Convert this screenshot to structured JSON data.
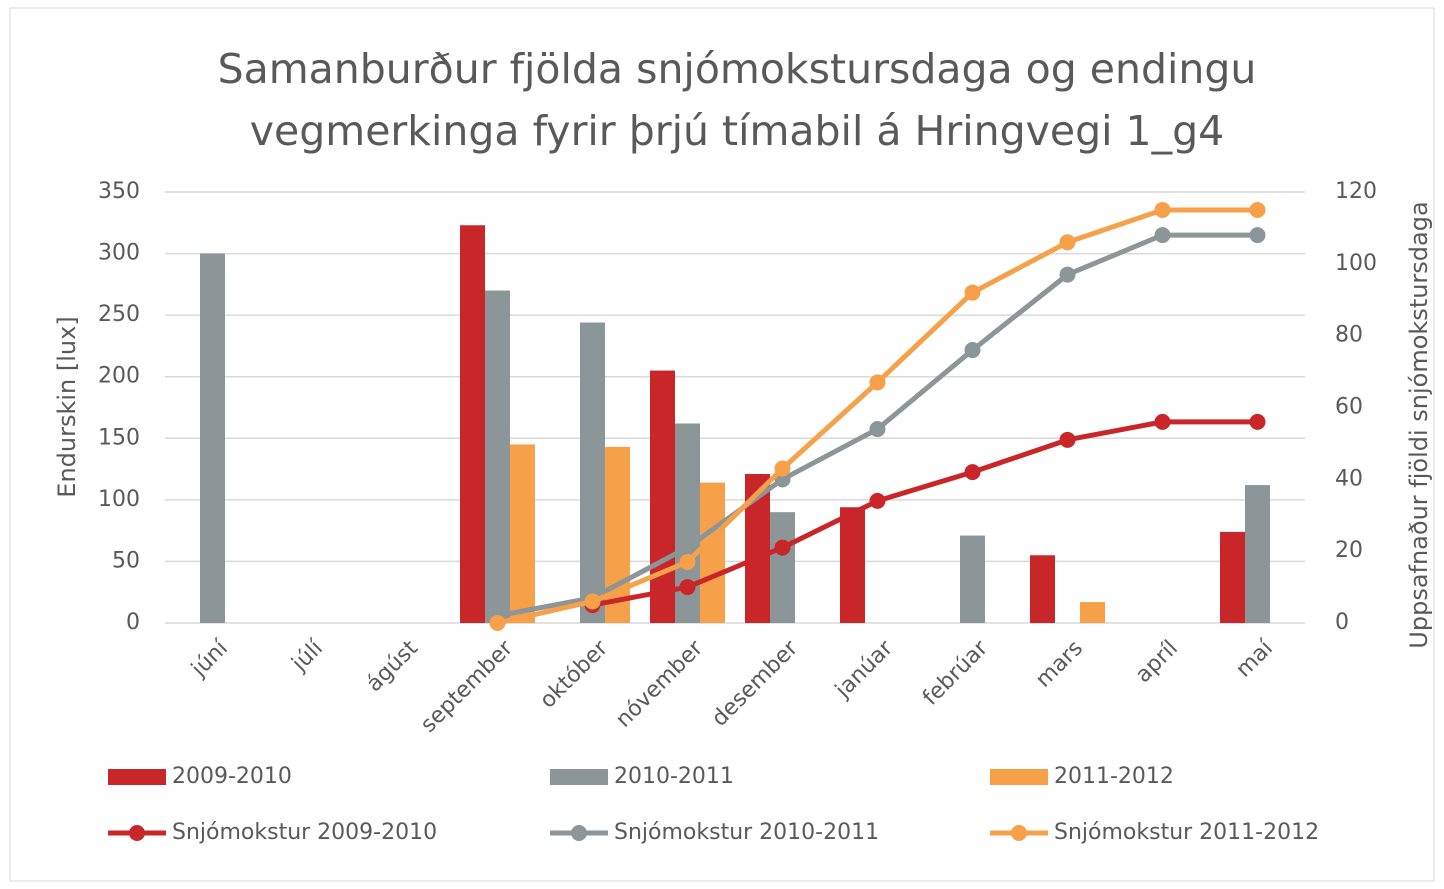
{
  "chart_data": {
    "type": "bar",
    "title": "Samanburður fjölda snjómokstursdaga og endingu vegmerkinga fyrir þrjú tímabil á Hringvegi 1_g4",
    "ylabel": "Endurskin [lux]",
    "y2label": "Uppsafnaður fjöldi snjómokstursdaga",
    "categories": [
      "júní",
      "júlí",
      "ágúst",
      "september",
      "október",
      "nóvember",
      "desember",
      "janúar",
      "febrúar",
      "mars",
      "apríl",
      "maí"
    ],
    "ylim": [
      0,
      350
    ],
    "yticks": [
      0,
      50,
      100,
      150,
      200,
      250,
      300,
      350
    ],
    "y2lim": [
      0,
      120
    ],
    "y2ticks": [
      0,
      20,
      40,
      60,
      80,
      100,
      120
    ],
    "grid": true,
    "legend": "bottom",
    "series": [
      {
        "name": "2009-2010",
        "type": "bar",
        "color": "#c9262a",
        "values": [
          null,
          null,
          null,
          323,
          null,
          205,
          121,
          94,
          null,
          55,
          null,
          74
        ]
      },
      {
        "name": "2010-2011",
        "type": "bar",
        "color": "#8c9598",
        "values": [
          300,
          null,
          null,
          270,
          244,
          162,
          90,
          null,
          71,
          null,
          null,
          112
        ]
      },
      {
        "name": "2011-2012",
        "type": "bar",
        "color": "#f7a04a",
        "values": [
          null,
          null,
          null,
          145,
          143,
          114,
          null,
          null,
          null,
          17,
          null,
          null
        ]
      },
      {
        "name": "Snjómokstur 2009-2010",
        "type": "line",
        "axis": "y2",
        "color": "#c9262a",
        "values": [
          null,
          null,
          null,
          null,
          5,
          10,
          21,
          34,
          42,
          51,
          56,
          56
        ]
      },
      {
        "name": "Snjómokstur 2010-2011",
        "type": "line",
        "axis": "y2",
        "color": "#8c9598",
        "values": [
          null,
          null,
          null,
          2,
          7,
          21,
          40,
          54,
          76,
          97,
          108,
          108
        ]
      },
      {
        "name": "Snjómokstur 2011-2012",
        "type": "line",
        "axis": "y2",
        "color": "#f7a04a",
        "values": [
          null,
          null,
          null,
          0,
          6,
          17,
          43,
          67,
          92,
          106,
          115,
          115
        ]
      }
    ]
  }
}
